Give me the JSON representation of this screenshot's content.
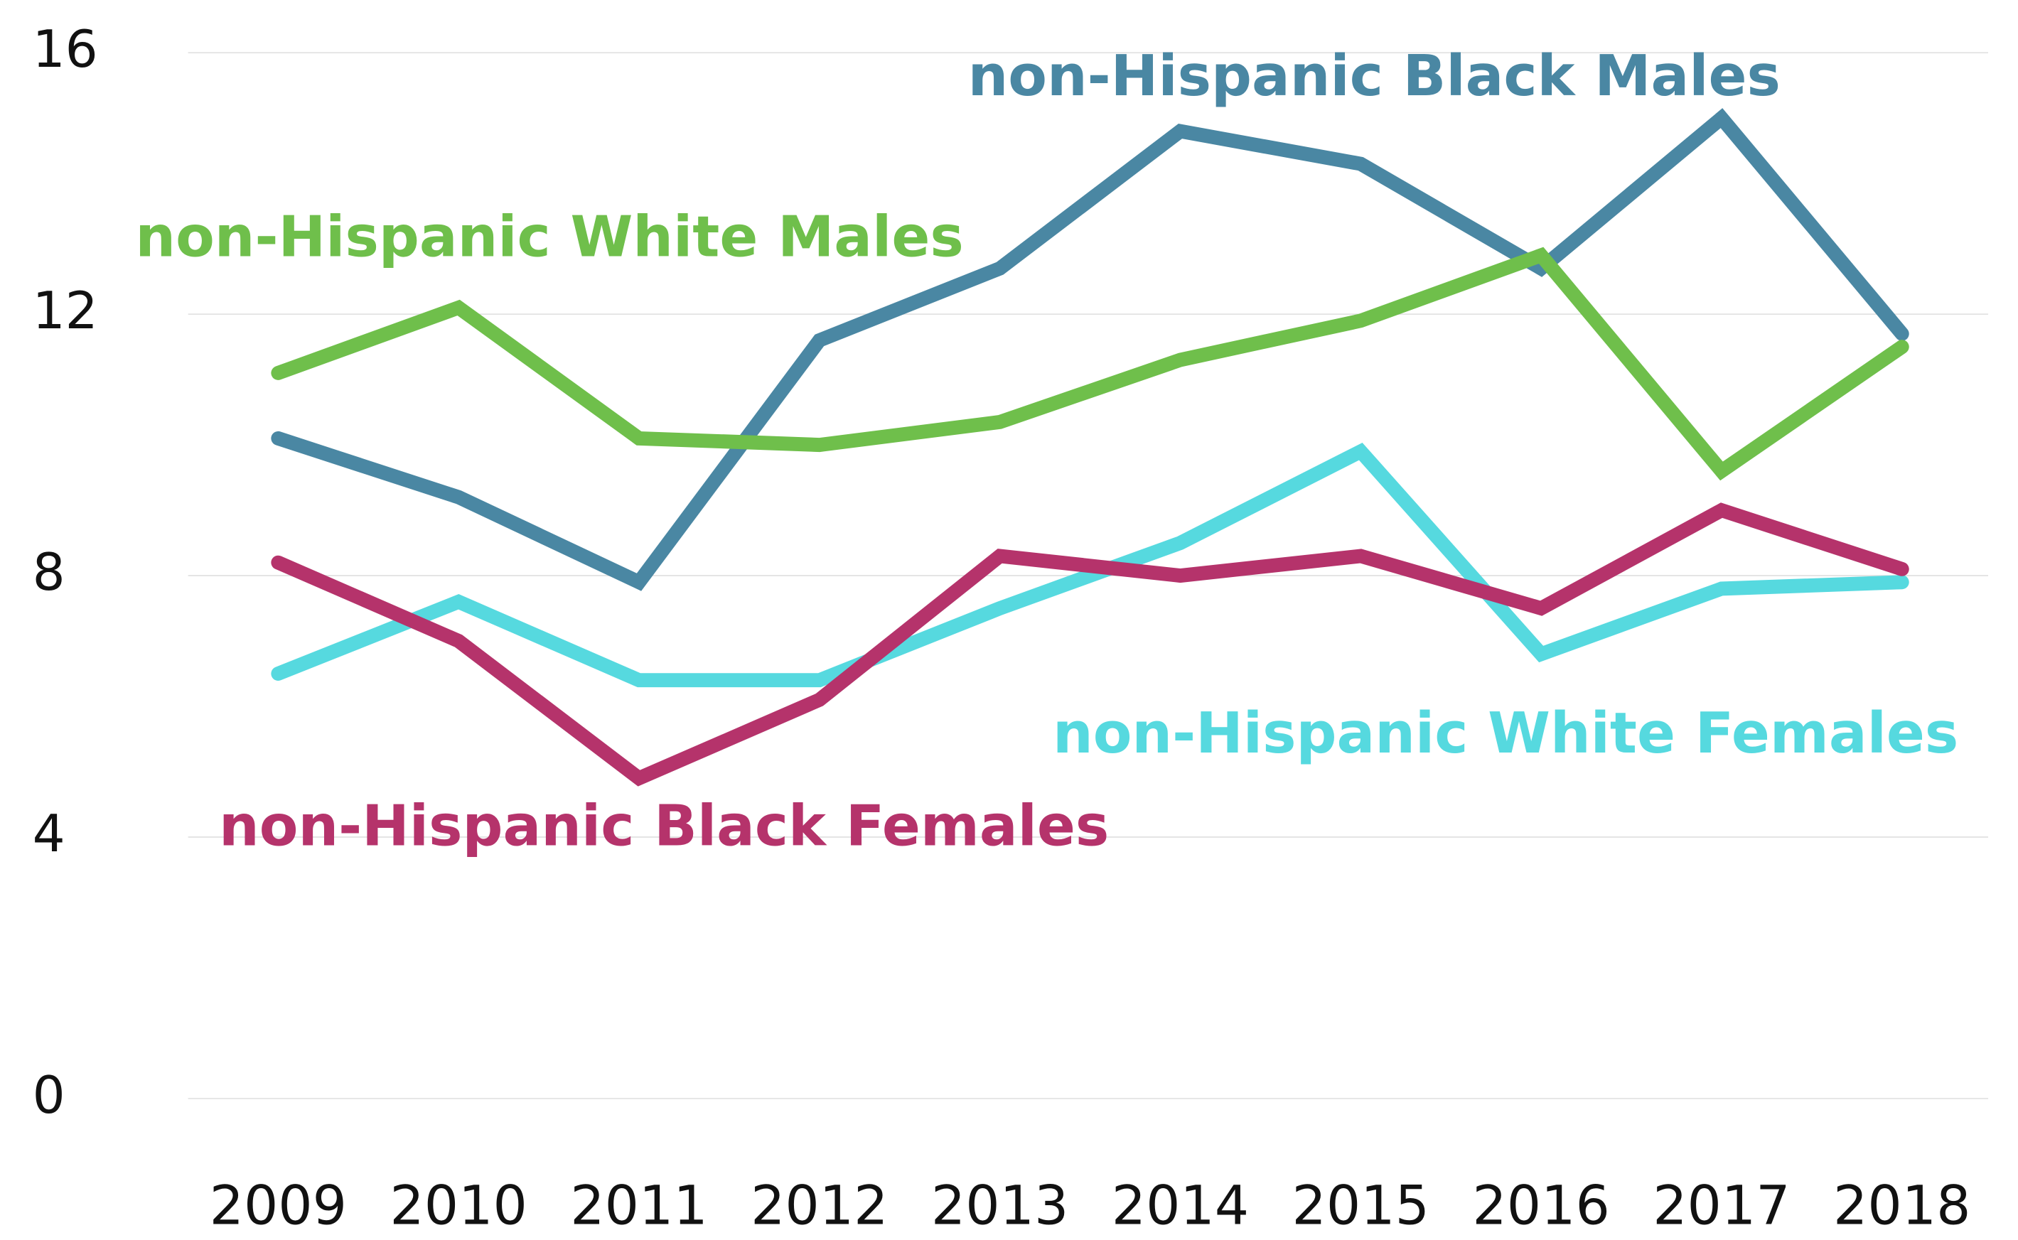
{
  "chart_data": {
    "type": "line",
    "categories": [
      "2009",
      "2010",
      "2011",
      "2012",
      "2013",
      "2014",
      "2015",
      "2016",
      "2017",
      "2018"
    ],
    "series": [
      {
        "name": "non-Hispanic Black Males",
        "color": "#4a87a3",
        "values": [
          10.1,
          9.2,
          7.9,
          11.6,
          12.7,
          14.8,
          14.3,
          12.7,
          15.0,
          11.7
        ]
      },
      {
        "name": "non-Hispanic White Males",
        "color": "#6fbf4b",
        "values": [
          11.1,
          12.1,
          10.1,
          10.0,
          10.35,
          11.3,
          11.9,
          12.9,
          9.6,
          11.5
        ]
      },
      {
        "name": "non-Hispanic White Females",
        "color": "#56d9df",
        "values": [
          6.5,
          7.6,
          6.4,
          6.4,
          7.5,
          8.5,
          9.9,
          6.8,
          7.8,
          7.9
        ]
      },
      {
        "name": "non-Hispanic Black Females",
        "color": "#b5336b",
        "values": [
          8.2,
          7.0,
          4.9,
          6.1,
          8.3,
          8.0,
          8.3,
          7.5,
          9.0,
          8.1
        ]
      }
    ],
    "ylim": [
      0,
      16
    ],
    "yticks": [
      0,
      4,
      8,
      12,
      16
    ],
    "grid": true
  }
}
